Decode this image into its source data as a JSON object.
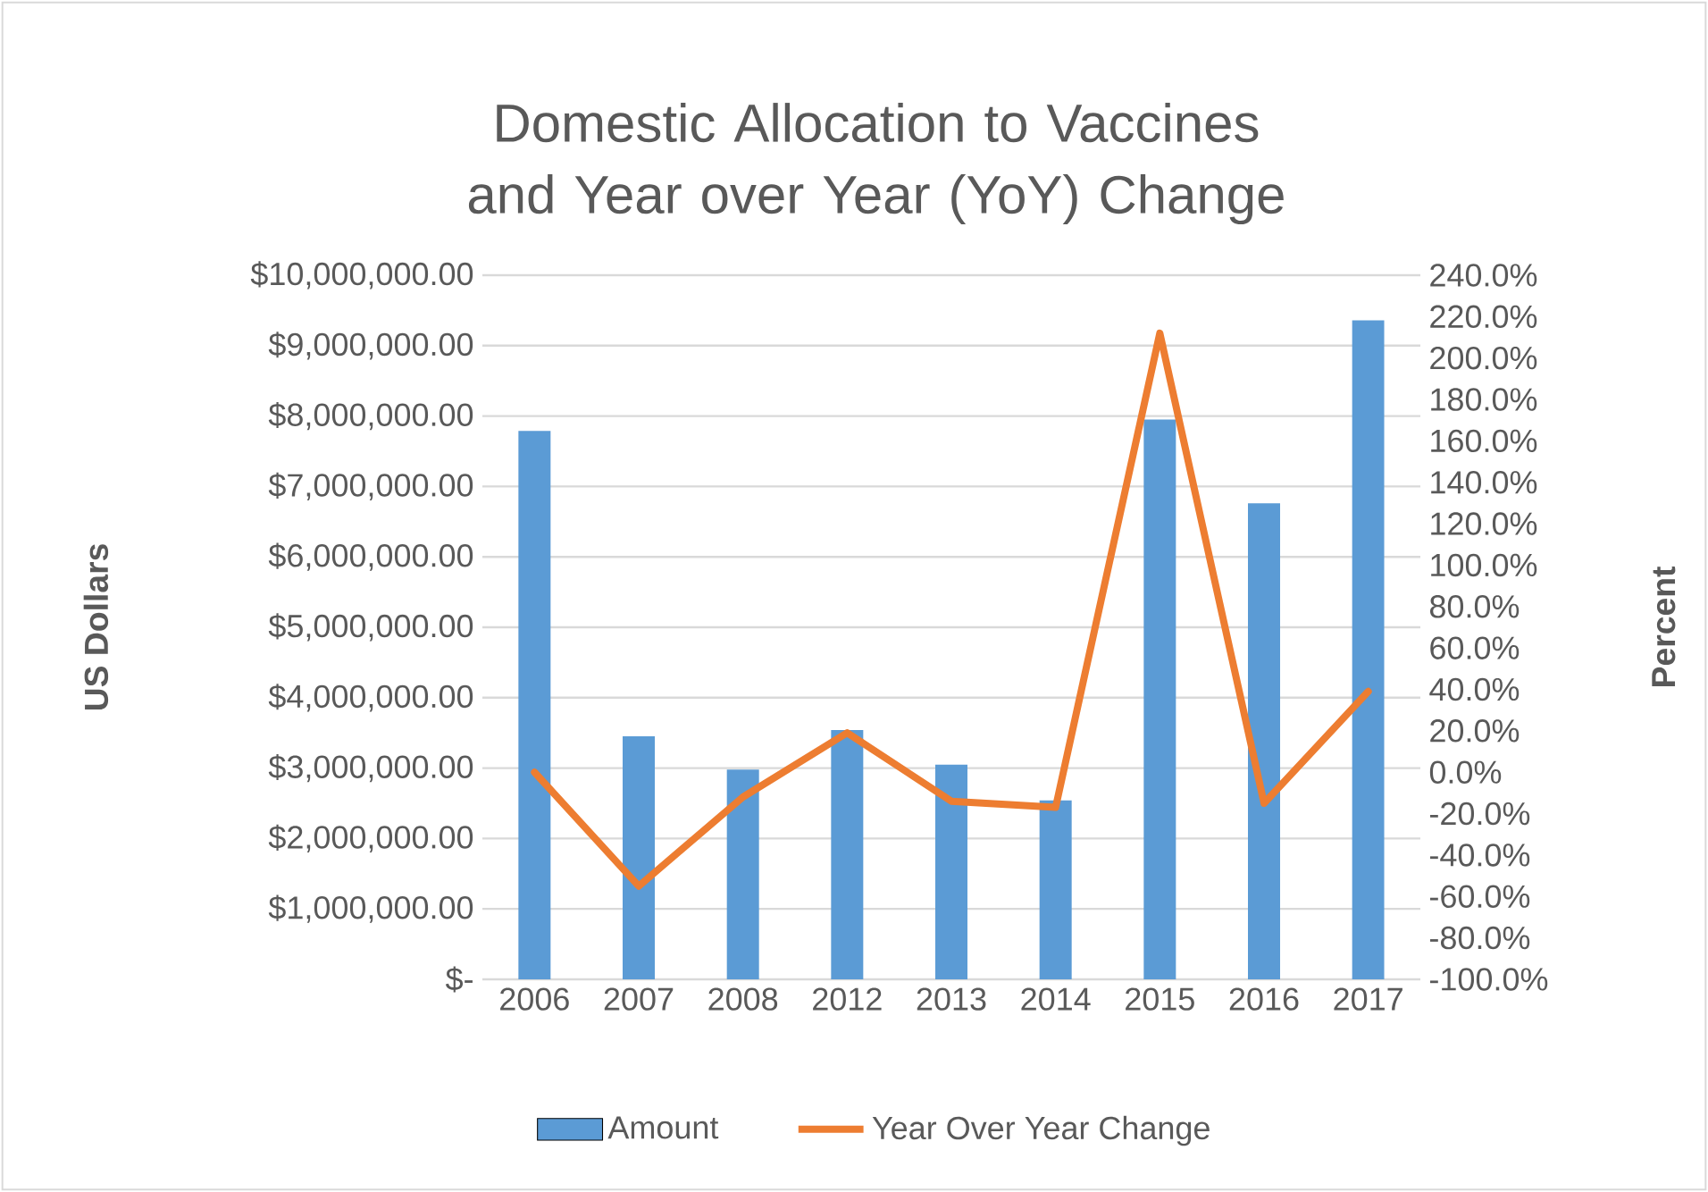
{
  "chart_data": {
    "type": "bar",
    "title": "Domestic Allocation to Vaccines and Year over Year (YoY) Change",
    "ylabel": "US Dollars",
    "y2label": "Percent",
    "categories": [
      "2006",
      "2007",
      "2008",
      "2012",
      "2013",
      "2014",
      "2015",
      "2016",
      "2017"
    ],
    "series": [
      {
        "name": "Amount",
        "color": "#5b9bd5",
        "values": [
          7790000,
          3450000,
          2980000,
          3540000,
          3050000,
          2540000,
          7950000,
          6760000,
          9360000
        ]
      },
      {
        "name": "Year Over Year Change",
        "type": "line",
        "axis": "y2",
        "color": "#ed7d31",
        "values": [
          0,
          -55,
          -12,
          19,
          -14,
          -17,
          212,
          -15,
          39
        ]
      }
    ],
    "ylim": [
      0,
      10000000
    ],
    "yticks": [
      {
        "value": 0,
        "label": "$-"
      },
      {
        "value": 1000000,
        "label": "$1,000,000.00"
      },
      {
        "value": 2000000,
        "label": "$2,000,000.00"
      },
      {
        "value": 3000000,
        "label": "$3,000,000.00"
      },
      {
        "value": 4000000,
        "label": "$4,000,000.00"
      },
      {
        "value": 5000000,
        "label": "$5,000,000.00"
      },
      {
        "value": 6000000,
        "label": "$6,000,000.00"
      },
      {
        "value": 7000000,
        "label": "$7,000,000.00"
      },
      {
        "value": 8000000,
        "label": "$8,000,000.00"
      },
      {
        "value": 9000000,
        "label": "$9,000,000.00"
      },
      {
        "value": 10000000,
        "label": "$10,000,000.00"
      }
    ],
    "y2lim": [
      -100,
      240
    ],
    "y2ticks": [
      {
        "value": -100,
        "label": "-100.0%"
      },
      {
        "value": -80,
        "label": "-80.0%"
      },
      {
        "value": -60,
        "label": "-60.0%"
      },
      {
        "value": -40,
        "label": "-40.0%"
      },
      {
        "value": -20,
        "label": "-20.0%"
      },
      {
        "value": 0,
        "label": "0.0%"
      },
      {
        "value": 20,
        "label": "20.0%"
      },
      {
        "value": 40,
        "label": "40.0%"
      },
      {
        "value": 60,
        "label": "60.0%"
      },
      {
        "value": 80,
        "label": "80.0%"
      },
      {
        "value": 100,
        "label": "100.0%"
      },
      {
        "value": 120,
        "label": "120.0%"
      },
      {
        "value": 140,
        "label": "140.0%"
      },
      {
        "value": 160,
        "label": "160.0%"
      },
      {
        "value": 180,
        "label": "180.0%"
      },
      {
        "value": 200,
        "label": "200.0%"
      },
      {
        "value": 220,
        "label": "220.0%"
      },
      {
        "value": 240,
        "label": "240.0%"
      }
    ],
    "grid": "y",
    "legend": "bottom"
  }
}
